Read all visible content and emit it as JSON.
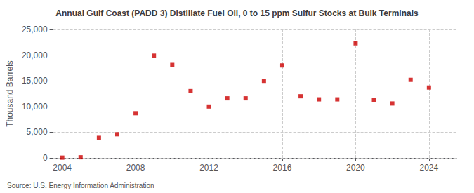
{
  "chart_data": {
    "type": "scatter",
    "title": "Annual Gulf Coast (PADD 3) Distillate Fuel Oil, 0 to 15 ppm Sulfur Stocks at Bulk Terminals",
    "ylabel": "Thousand Barrels",
    "annotation": "Source: U.S. Energy Information Administration",
    "x": [
      2004,
      2005,
      2006,
      2007,
      2008,
      2009,
      2010,
      2011,
      2012,
      2013,
      2014,
      2015,
      2016,
      2017,
      2018,
      2019,
      2020,
      2021,
      2022,
      2023,
      2024
    ],
    "values": [
      50,
      120,
      3900,
      4600,
      8700,
      19900,
      18100,
      13000,
      10000,
      11600,
      11600,
      15000,
      18000,
      12000,
      11400,
      11400,
      22300,
      11200,
      10600,
      15200,
      13700
    ],
    "color": "#cc0000",
    "marker": "square",
    "xlim": [
      2003.5,
      2025.5
    ],
    "xticks": [
      2004,
      2008,
      2012,
      2016,
      2020,
      2024
    ],
    "ylim": [
      0,
      25000
    ],
    "yticks": [
      0,
      {
        "value": 5000,
        "label": "5,000"
      },
      {
        "value": 10000,
        "label": "10,000"
      },
      {
        "value": 15000,
        "label": "15,000"
      },
      {
        "value": 20000,
        "label": "20,000"
      },
      {
        "value": 25000,
        "label": "25,000"
      }
    ],
    "grid": true
  }
}
